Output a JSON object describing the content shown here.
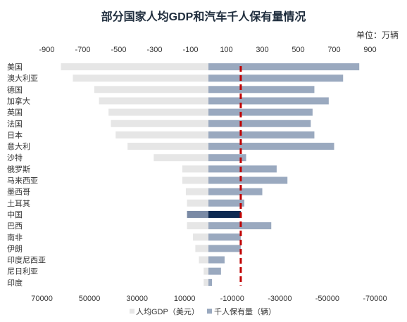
{
  "chart_data": {
    "type": "bar",
    "orientation": "horizontal",
    "title": "部分国家人均GDP和汽车千人保有量情况",
    "unit_note": "单位：万辆",
    "categories": [
      "美国",
      "澳大利亚",
      "德国",
      "加拿大",
      "英国",
      "法国",
      "日本",
      "意大利",
      "沙特",
      "俄罗斯",
      "马来西亚",
      "墨西哥",
      "土耳其",
      "中国",
      "巴西",
      "南非",
      "伊朗",
      "印度尼西亚",
      "尼日利亚",
      "印度"
    ],
    "series": [
      {
        "name": "人均GDP（美元）",
        "axis": "bottom",
        "direction": "left",
        "color": "#e6e6e6",
        "values": [
          62000,
          57000,
          48000,
          46000,
          42000,
          41000,
          39000,
          34000,
          23000,
          11000,
          11000,
          9500,
          9000,
          9000,
          9000,
          6500,
          5500,
          4000,
          2000,
          2000
        ]
      },
      {
        "name": "千人保有量（辆）",
        "axis": "top",
        "direction": "right",
        "color": "#9aa9bf",
        "values": [
          840,
          750,
          590,
          670,
          580,
          570,
          590,
          700,
          210,
          380,
          440,
          300,
          200,
          180,
          350,
          180,
          180,
          90,
          70,
          20
        ]
      }
    ],
    "highlight": {
      "category": "中国",
      "colors": {
        "人均GDP（美元）": "#7a8aa5",
        "千人保有量（辆）": "#0e2a52"
      }
    },
    "reference_line": {
      "axis": "top",
      "value": 180,
      "color": "#c00000",
      "style": "dashed"
    },
    "top_axis": {
      "ticks": [
        -900,
        -700,
        -500,
        -300,
        -100,
        100,
        300,
        500,
        700,
        900
      ],
      "range": [
        -1000,
        1000
      ]
    },
    "bottom_axis": {
      "ticks": [
        70000,
        50000,
        30000,
        10000,
        -10000,
        -30000,
        -50000,
        -70000
      ],
      "range": [
        80000,
        -80000
      ],
      "reversed": true
    },
    "legend": {
      "position": "bottom",
      "items": [
        "人均GDP（美元）",
        "千人保有量（辆）"
      ]
    }
  }
}
